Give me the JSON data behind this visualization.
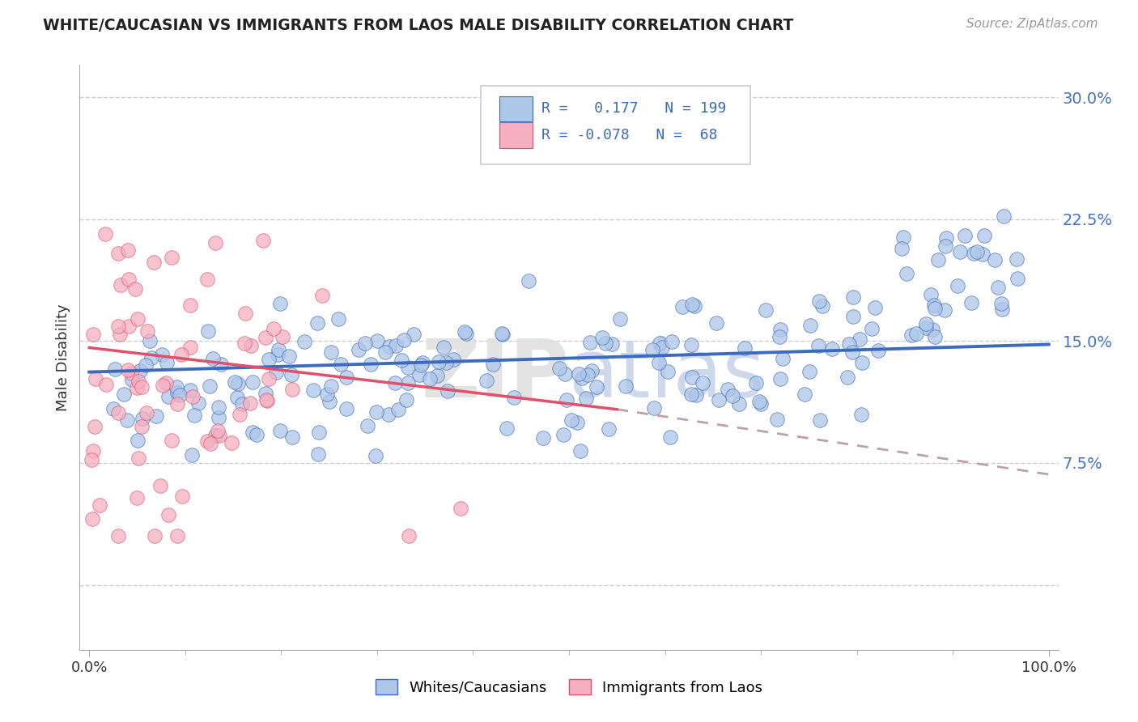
{
  "title": "WHITE/CAUCASIAN VS IMMIGRANTS FROM LAOS MALE DISABILITY CORRELATION CHART",
  "source": "Source: ZipAtlas.com",
  "ylabel": "Male Disability",
  "watermark": "ZIPAtlas",
  "legend_label1": "Whites/Caucasians",
  "legend_label2": "Immigrants from Laos",
  "R1": 0.177,
  "N1": 199,
  "R2": -0.078,
  "N2": 68,
  "color1": "#aec6e8",
  "color2": "#f5afc0",
  "line_color1": "#3a6bbd",
  "line_color2": "#e0506a",
  "xlim": [
    -0.01,
    1.01
  ],
  "ylim_min": -0.04,
  "ylim_max": 0.32,
  "yticks": [
    0.0,
    0.075,
    0.15,
    0.225,
    0.3
  ],
  "ytick_labels": [
    "",
    "7.5%",
    "15.0%",
    "22.5%",
    "30.0%"
  ],
  "xtick_labels": [
    "0.0%",
    "100.0%"
  ],
  "background_color": "#ffffff",
  "seed1": 42,
  "seed2": 7
}
